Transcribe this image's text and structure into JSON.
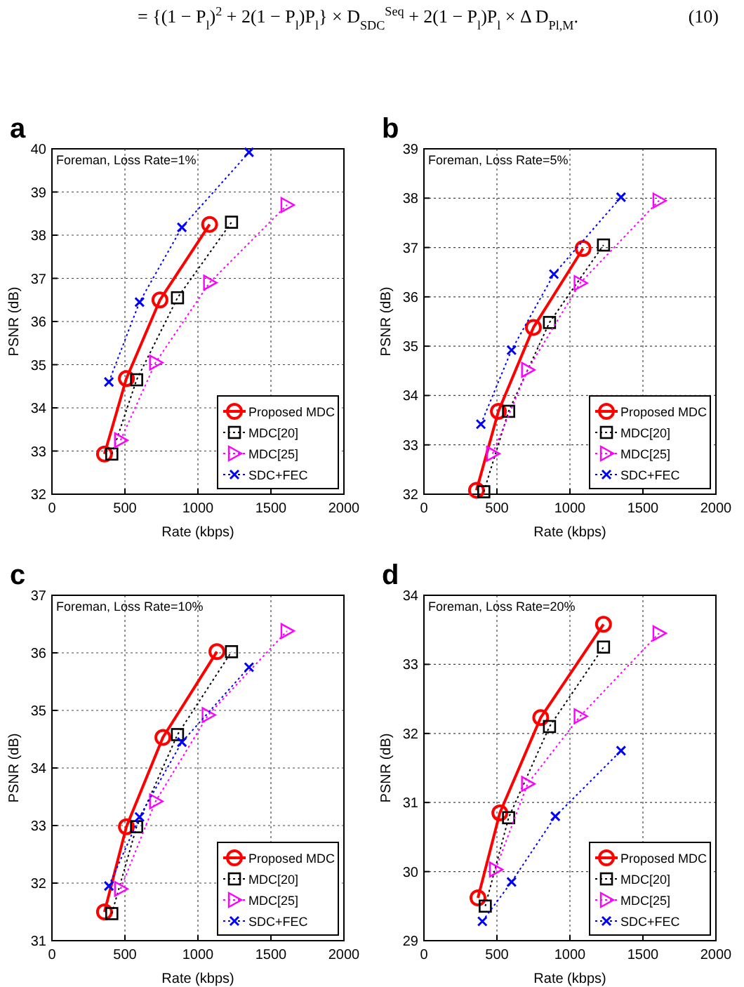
{
  "chart_data": [
    {
      "type": "other",
      "annotations": [
        "= {(1 − P$_{l}$)$^{2}$ + 2(1 − P$_{l}$)P$_{l}$} × D$_{SDC}$$^{Seq}$ + 2(1 − P$_{l}$)P$_{l}$ × Δ D$_{Pl,M}$.",
        "(10)"
      ]
    },
    {
      "type": "line",
      "title": "a",
      "xlabel": "Rate (kbps)",
      "ylabel": "PSNR (dB)",
      "annotations": [
        "Foreman, Loss Rate=1%"
      ],
      "xlim": [
        0,
        2000
      ],
      "xticks": [
        0,
        500,
        1000,
        1500,
        2000
      ],
      "ylim": [
        32,
        40
      ],
      "yticks": [
        32,
        33,
        34,
        35,
        36,
        37,
        38,
        39,
        40
      ],
      "grid": true,
      "legend": "bottom right",
      "series": [
        {
          "name": "Proposed MDC",
          "color": "#ff0000",
          "marker": "circle",
          "line_style": "solid",
          "x": [
            360,
            510,
            740,
            1080
          ],
          "values": [
            32.93,
            34.68,
            36.5,
            38.25
          ]
        },
        {
          "name": "MDC[20]",
          "color": "#000000",
          "marker": "square",
          "line_style": "dotted",
          "x": [
            410,
            580,
            860,
            1230
          ],
          "values": [
            32.93,
            34.65,
            36.55,
            38.3
          ]
        },
        {
          "name": "MDC[25]",
          "color": "#ff00ff",
          "marker": "triangle",
          "line_style": "dotted",
          "x": [
            470,
            710,
            1080,
            1610
          ],
          "values": [
            33.25,
            35.05,
            36.9,
            38.7
          ]
        },
        {
          "name": "SDC+FEC",
          "color": "#0000ff",
          "marker": "cross",
          "line_style": "dotted",
          "x": [
            390,
            600,
            890,
            1350
          ],
          "values": [
            34.6,
            36.45,
            38.18,
            39.92
          ]
        }
      ]
    },
    {
      "type": "line",
      "title": "b",
      "xlabel": "Rate (kbps)",
      "ylabel": "PSNR (dB)",
      "annotations": [
        "Foreman, Loss Rate=5%"
      ],
      "xlim": [
        0,
        2000
      ],
      "xticks": [
        0,
        500,
        1000,
        1500,
        2000
      ],
      "ylim": [
        32,
        39
      ],
      "yticks": [
        32,
        33,
        34,
        35,
        36,
        37,
        38,
        39
      ],
      "grid": true,
      "legend": "bottom right",
      "series": [
        {
          "name": "Proposed MDC",
          "color": "#ff0000",
          "marker": "circle",
          "line_style": "solid",
          "x": [
            360,
            510,
            750,
            1090
          ],
          "values": [
            32.08,
            33.68,
            35.38,
            36.98
          ]
        },
        {
          "name": "MDC[20]",
          "color": "#000000",
          "marker": "square",
          "line_style": "dotted",
          "x": [
            410,
            580,
            860,
            1230
          ],
          "values": [
            32.05,
            33.68,
            35.48,
            37.05
          ]
        },
        {
          "name": "MDC[25]",
          "color": "#ff00ff",
          "marker": "triangle",
          "line_style": "dotted",
          "x": [
            470,
            710,
            1070,
            1610
          ],
          "values": [
            32.82,
            34.52,
            36.28,
            37.95
          ]
        },
        {
          "name": "SDC+FEC",
          "color": "#0000ff",
          "marker": "cross",
          "line_style": "dotted",
          "x": [
            390,
            600,
            890,
            1350
          ],
          "values": [
            33.42,
            34.92,
            36.46,
            38.02
          ]
        }
      ]
    },
    {
      "type": "line",
      "title": "c",
      "xlabel": "Rate (kbps)",
      "ylabel": "PSNR (dB)",
      "annotations": [
        "Foreman, Loss Rate=10%"
      ],
      "xlim": [
        0,
        2000
      ],
      "xticks": [
        0,
        500,
        1000,
        1500,
        2000
      ],
      "ylim": [
        31,
        37
      ],
      "yticks": [
        31,
        32,
        33,
        34,
        35,
        36,
        37
      ],
      "grid": true,
      "legend": "bottom right",
      "series": [
        {
          "name": "Proposed MDC",
          "color": "#ff0000",
          "marker": "circle",
          "line_style": "solid",
          "x": [
            360,
            510,
            760,
            1130
          ],
          "values": [
            31.5,
            32.98,
            34.53,
            36.02
          ]
        },
        {
          "name": "MDC[20]",
          "color": "#000000",
          "marker": "square",
          "line_style": "dotted",
          "x": [
            410,
            580,
            860,
            1230
          ],
          "values": [
            31.47,
            32.98,
            34.58,
            36.02
          ]
        },
        {
          "name": "MDC[25]",
          "color": "#ff00ff",
          "marker": "triangle",
          "line_style": "dotted",
          "x": [
            470,
            710,
            1070,
            1610
          ],
          "values": [
            31.9,
            33.42,
            34.92,
            36.38
          ]
        },
        {
          "name": "SDC+FEC",
          "color": "#0000ff",
          "marker": "cross",
          "line_style": "dotted",
          "x": [
            390,
            600,
            890,
            1350
          ],
          "values": [
            31.95,
            33.15,
            34.45,
            35.75
          ]
        }
      ]
    },
    {
      "type": "line",
      "title": "d",
      "xlabel": "Rate (kbps)",
      "ylabel": "PSNR (dB)",
      "annotations": [
        "Foreman, Loss Rate=20%"
      ],
      "xlim": [
        0,
        2000
      ],
      "xticks": [
        0,
        500,
        1000,
        1500,
        2000
      ],
      "ylim": [
        29,
        34
      ],
      "yticks": [
        29,
        30,
        31,
        32,
        33,
        34
      ],
      "grid": true,
      "legend": "bottom right",
      "series": [
        {
          "name": "Proposed MDC",
          "color": "#ff0000",
          "marker": "circle",
          "line_style": "solid",
          "x": [
            370,
            520,
            800,
            1230
          ],
          "values": [
            29.62,
            30.85,
            32.23,
            33.58
          ]
        },
        {
          "name": "MDC[20]",
          "color": "#000000",
          "marker": "square",
          "line_style": "dotted",
          "x": [
            420,
            580,
            860,
            1230
          ],
          "values": [
            29.5,
            30.78,
            32.1,
            33.25
          ]
        },
        {
          "name": "MDC[25]",
          "color": "#ff00ff",
          "marker": "triangle",
          "line_style": "dotted",
          "x": [
            490,
            710,
            1070,
            1610
          ],
          "values": [
            30.03,
            31.27,
            32.25,
            33.45
          ]
        },
        {
          "name": "SDC+FEC",
          "color": "#0000ff",
          "marker": "cross",
          "line_style": "dotted",
          "x": [
            400,
            600,
            900,
            1350
          ],
          "values": [
            29.28,
            29.85,
            30.8,
            31.75
          ]
        }
      ]
    }
  ]
}
